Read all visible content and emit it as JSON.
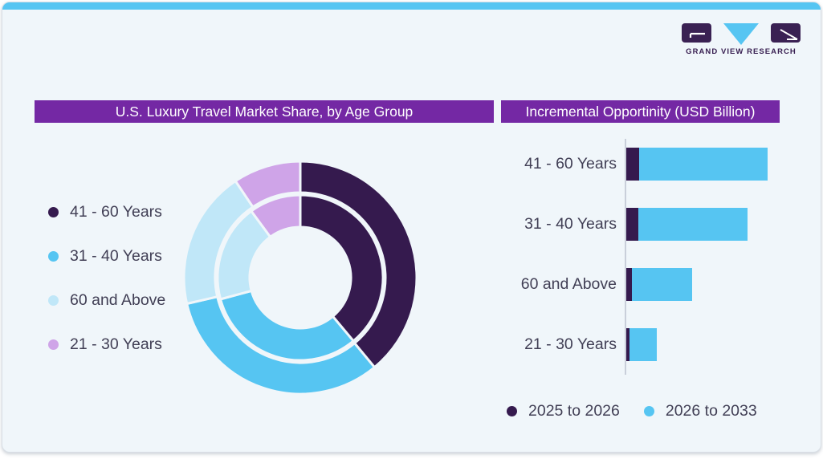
{
  "brand": {
    "logo_text": "GRAND VIEW RESEARCH"
  },
  "theme": {
    "accent_blue": "#56C5F2",
    "band_purple": "#7428A4",
    "dark_purple": "#351A4E",
    "light_blue": "#C0E7F8",
    "lavender": "#CFA4E8",
    "card_bg": "#F0F6FA",
    "text_color": "#413F55",
    "logo_purple": "#3A2153",
    "axis_gray": "#C9CFDA"
  },
  "left_panel": {
    "title": "U.S. Luxury Travel Market Share, by Age Group",
    "legend": [
      {
        "label": "41 - 60 Years",
        "color": "#351A4E"
      },
      {
        "label": "31 - 40 Years",
        "color": "#56C5F2"
      },
      {
        "label": "60 and Above",
        "color": "#C0E7F8"
      },
      {
        "label": "21 - 30 Years",
        "color": "#CFA4E8"
      }
    ]
  },
  "right_panel": {
    "title": "Incremental Opportinity (USD Billion)",
    "legend": [
      {
        "label": "2025 to 2026",
        "color": "#351A4E"
      },
      {
        "label": "2026 to 2033",
        "color": "#56C5F2"
      }
    ]
  },
  "chart_data": [
    {
      "type": "pie",
      "variant": "double-ring-donut",
      "title": "U.S. Luxury Travel Market Share, by Age Group",
      "categories": [
        "41 - 60 Years",
        "31 - 40 Years",
        "60 and Above",
        "21 - 30 Years"
      ],
      "colors": [
        "#351A4E",
        "#56C5F2",
        "#C0E7F8",
        "#CFA4E8"
      ],
      "rings": [
        {
          "name": "outer",
          "share_pct": [
            39.0,
            32.4,
            19.2,
            9.4
          ]
        },
        {
          "name": "inner",
          "share_pct": [
            38.9,
            31.9,
            19.1,
            10.1
          ]
        }
      ],
      "start_angle_deg": 0,
      "direction": "clockwise",
      "legend_position": "left",
      "data_labels_shown": false
    },
    {
      "type": "bar",
      "orientation": "horizontal",
      "stacked": true,
      "title": "Incremental Opportinity (USD Billion)",
      "categories": [
        "41 - 60 Years",
        "31 - 40 Years",
        "60 and Above",
        "21 - 30 Years"
      ],
      "series": [
        {
          "name": "2025 to 2026",
          "color": "#351A4E",
          "values": [
            16,
            15,
            7,
            4
          ]
        },
        {
          "name": "2026 to 2033",
          "color": "#56C5F2",
          "values": [
            160,
            136,
            75,
            34
          ]
        }
      ],
      "value_axis_shown": false,
      "values_are_relative_estimates": true,
      "legend_position": "bottom"
    }
  ]
}
